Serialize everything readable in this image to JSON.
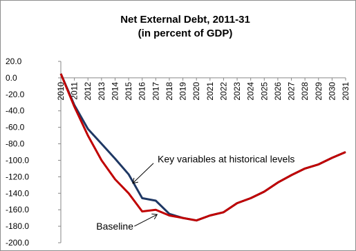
{
  "chart_data": {
    "type": "line",
    "title_lines": [
      "Net External Debt, 2011-31",
      "(in percent of GDP)"
    ],
    "x": [
      2010,
      2011,
      2012,
      2013,
      2014,
      2015,
      2016,
      2017,
      2018,
      2019,
      2020,
      2021,
      2022,
      2023,
      2024,
      2025,
      2026,
      2027,
      2028,
      2029,
      2030,
      2031
    ],
    "x_tick_labels": [
      "2010",
      "2011",
      "2012",
      "2013",
      "2014",
      "2015",
      "2016",
      "2017",
      "2018",
      "2019",
      "2020",
      "2021",
      "2022",
      "2023",
      "2024",
      "2025",
      "2026",
      "2027",
      "2028",
      "2029",
      "2030",
      "2031"
    ],
    "ylim": [
      -200,
      20
    ],
    "y_ticks": [
      20,
      0,
      -20,
      -40,
      -60,
      -80,
      -100,
      -120,
      -140,
      -160,
      -180,
      -200
    ],
    "y_tick_labels": [
      "20.0",
      "0.0",
      "-20.0",
      "-40.0",
      "-60.0",
      "-80.0",
      "-100.0",
      "-120.0",
      "-140.0",
      "-160.0",
      "-180.0",
      "-200.0"
    ],
    "grid": false,
    "series": [
      {
        "name": "Key variables at historical levels",
        "color": "#1f3864",
        "values": [
          5,
          -33,
          -62,
          -80,
          -98,
          -117,
          -146,
          -149,
          -165,
          -170,
          -173,
          -167,
          -163,
          -152,
          -146,
          -138,
          -127,
          -118,
          -110,
          -105,
          -97,
          -90
        ]
      },
      {
        "name": "Baseline",
        "color": "#c00000",
        "values": [
          5,
          -35,
          -70,
          -100,
          -123,
          -140,
          -162,
          -160,
          -167,
          -170,
          -173,
          -167,
          -163,
          -152,
          -146,
          -138,
          -127,
          -118,
          -110,
          -105,
          -97,
          -90
        ]
      }
    ],
    "annotations": [
      {
        "label": "Key variables at historical levels",
        "series": 0,
        "x": 2015.2
      },
      {
        "label": "Baseline",
        "series": 1,
        "x": 2017.1
      }
    ]
  }
}
